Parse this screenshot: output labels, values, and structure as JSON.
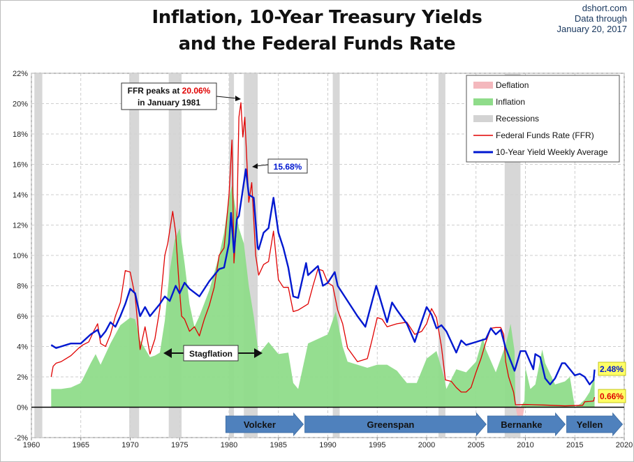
{
  "title_line1": "Inflation, 10-Year Treasury Yields",
  "title_line2": "and the Federal Funds Rate",
  "source": {
    "site": "dshort.com",
    "line2": "Data through",
    "line3": "January 20, 2017"
  },
  "chart_data": {
    "type": "line",
    "title": "Inflation, 10-Year Treasury Yields and the Federal Funds Rate",
    "xlim": [
      1960,
      2020
    ],
    "ylim": [
      -2,
      22
    ],
    "x_ticks": [
      1960,
      1965,
      1970,
      1975,
      1980,
      1985,
      1990,
      1995,
      2000,
      2005,
      2010,
      2015,
      2020
    ],
    "y_ticks": [
      "-2%",
      "0%",
      "2%",
      "4%",
      "6%",
      "8%",
      "10%",
      "12%",
      "14%",
      "16%",
      "18%",
      "20%",
      "22%"
    ],
    "grid": true,
    "legend_position": "top-right",
    "legend": [
      "Deflation",
      "Inflation",
      "Recessions",
      "Federal Funds Rate (FFR)",
      "10-Year Yield Weekly Average"
    ],
    "colors": {
      "deflation": "#f4b8bd",
      "inflation": "#8fdc8a",
      "recessions": "#d3d3d3",
      "ffr": "#e00000",
      "yield": "#0018d0",
      "era_arrow": "#4f81bd"
    },
    "recessions": [
      [
        1960.3,
        1961.1
      ],
      [
        1969.9,
        1970.9
      ],
      [
        1973.9,
        1975.2
      ],
      [
        1980.0,
        1980.5
      ],
      [
        1981.5,
        1982.9
      ],
      [
        1990.5,
        1991.2
      ],
      [
        2001.2,
        2001.9
      ],
      [
        2007.9,
        2009.5
      ]
    ],
    "series": [
      {
        "name": "Inflation",
        "x": [
          1962.0,
          1963.0,
          1964.0,
          1965.0,
          1966.0,
          1966.5,
          1967.0,
          1968.0,
          1969.0,
          1970.0,
          1970.5,
          1971.0,
          1972.0,
          1972.5,
          1973.0,
          1973.5,
          1974.0,
          1974.5,
          1975.0,
          1975.5,
          1976.0,
          1976.5,
          1977.0,
          1978.0,
          1979.0,
          1979.5,
          1980.0,
          1980.3,
          1980.7,
          1981.0,
          1981.5,
          1982.0,
          1982.5,
          1983.0,
          1984.0,
          1985.0,
          1986.0,
          1986.5,
          1987.0,
          1988.0,
          1989.0,
          1990.0,
          1990.8,
          1991.5,
          1992.0,
          1993.0,
          1994.0,
          1995.0,
          1996.0,
          1997.0,
          1998.0,
          1999.0,
          2000.0,
          2001.0,
          2001.8,
          2002.0,
          2003.0,
          2004.0,
          2005.0,
          2005.7,
          2006.0,
          2007.0,
          2008.0,
          2008.5,
          2008.9,
          2009.0,
          2009.5,
          2009.9,
          2010.0,
          2010.5,
          2011.0,
          2011.7,
          2012.0,
          2013.0,
          2014.0,
          2014.5,
          2015.0,
          2015.5,
          2016.0,
          2016.5,
          2017.0
        ],
        "values": [
          1.2,
          1.2,
          1.3,
          1.6,
          2.9,
          3.5,
          2.8,
          4.2,
          5.4,
          5.9,
          5.8,
          4.4,
          3.3,
          3.4,
          3.6,
          5.7,
          9.0,
          11.0,
          11.8,
          9.5,
          6.8,
          5.3,
          6.0,
          7.7,
          10.0,
          11.5,
          13.8,
          14.6,
          13.0,
          11.8,
          10.8,
          8.0,
          6.0,
          3.5,
          4.3,
          3.5,
          3.6,
          1.6,
          1.2,
          4.2,
          4.5,
          4.8,
          6.3,
          4.0,
          3.0,
          2.8,
          2.6,
          2.8,
          2.8,
          2.4,
          1.6,
          1.6,
          3.2,
          3.7,
          1.9,
          1.2,
          2.5,
          2.3,
          3.0,
          4.6,
          3.8,
          2.3,
          4.1,
          5.5,
          3.7,
          0.1,
          -1.5,
          0.4,
          2.6,
          1.2,
          1.5,
          3.8,
          2.9,
          1.5,
          1.7,
          2.0,
          0.0,
          0.2,
          0.5,
          1.0,
          2.1
        ]
      },
      {
        "name": "Federal Funds Rate (FFR)",
        "x": [
          1962.0,
          1962.2,
          1962.5,
          1963.0,
          1963.5,
          1964.0,
          1964.8,
          1965.2,
          1965.8,
          1966.3,
          1966.7,
          1967.0,
          1967.5,
          1968.0,
          1968.5,
          1969.0,
          1969.5,
          1970.0,
          1970.5,
          1971.0,
          1971.5,
          1972.0,
          1972.5,
          1973.0,
          1973.5,
          1973.8,
          1974.3,
          1974.6,
          1974.9,
          1975.2,
          1975.5,
          1976.0,
          1976.5,
          1977.0,
          1977.5,
          1978.0,
          1978.5,
          1979.0,
          1979.5,
          1980.0,
          1980.3,
          1980.5,
          1980.8,
          1981.0,
          1981.2,
          1981.4,
          1981.6,
          1982.0,
          1982.3,
          1982.7,
          1983.0,
          1983.5,
          1984.0,
          1984.5,
          1985.0,
          1985.5,
          1986.0,
          1986.5,
          1987.0,
          1987.5,
          1988.0,
          1988.5,
          1989.0,
          1989.5,
          1990.0,
          1990.5,
          1991.0,
          1991.5,
          1992.0,
          1993.0,
          1994.0,
          1994.5,
          1995.0,
          1995.5,
          1996.0,
          1997.0,
          1998.0,
          1998.8,
          1999.5,
          2000.0,
          2000.5,
          2001.0,
          2001.5,
          2001.9,
          2002.5,
          2003.0,
          2003.5,
          2004.0,
          2004.5,
          2005.0,
          2005.5,
          2006.0,
          2006.5,
          2007.0,
          2007.5,
          2007.8,
          2008.0,
          2008.3,
          2008.8,
          2009.0,
          2010.0,
          2012.0,
          2014.0,
          2015.8,
          2016.0,
          2016.5,
          2016.9,
          2017.0
        ],
        "values": [
          2.0,
          2.7,
          2.9,
          3.0,
          3.2,
          3.4,
          3.9,
          4.1,
          4.3,
          5.0,
          5.5,
          4.2,
          4.0,
          4.8,
          6.0,
          6.9,
          9.0,
          8.9,
          7.3,
          3.8,
          5.3,
          3.5,
          4.5,
          6.5,
          10.0,
          10.8,
          12.9,
          11.5,
          8.5,
          6.0,
          5.8,
          5.0,
          5.3,
          4.7,
          5.8,
          6.7,
          7.9,
          10.0,
          10.5,
          14.0,
          17.6,
          9.5,
          12.5,
          19.1,
          20.06,
          17.8,
          19.1,
          13.5,
          14.8,
          10.0,
          8.7,
          9.4,
          9.6,
          11.6,
          8.4,
          7.9,
          7.9,
          6.3,
          6.4,
          6.6,
          6.8,
          8.0,
          9.1,
          9.0,
          8.2,
          8.0,
          6.4,
          5.5,
          3.9,
          3.0,
          3.2,
          4.5,
          5.9,
          5.8,
          5.3,
          5.5,
          5.6,
          4.8,
          5.0,
          5.5,
          6.5,
          5.9,
          4.0,
          1.8,
          1.7,
          1.3,
          1.0,
          1.0,
          1.3,
          2.3,
          3.2,
          4.3,
          5.2,
          5.25,
          5.25,
          4.8,
          3.0,
          2.0,
          1.0,
          0.16,
          0.18,
          0.14,
          0.09,
          0.13,
          0.36,
          0.38,
          0.41,
          0.66
        ]
      },
      {
        "name": "10-Year Yield Weekly Average",
        "x": [
          1962.0,
          1962.5,
          1963.0,
          1963.5,
          1964.0,
          1965.0,
          1966.0,
          1966.7,
          1967.0,
          1967.5,
          1968.0,
          1968.5,
          1969.0,
          1969.5,
          1970.0,
          1970.5,
          1971.0,
          1971.5,
          1972.0,
          1973.0,
          1973.5,
          1974.0,
          1974.6,
          1975.0,
          1975.5,
          1976.0,
          1977.0,
          1978.0,
          1979.0,
          1979.5,
          1980.0,
          1980.2,
          1980.5,
          1980.8,
          1981.0,
          1981.3,
          1981.7,
          1982.0,
          1982.5,
          1982.9,
          1983.0,
          1983.5,
          1984.0,
          1984.5,
          1985.0,
          1985.5,
          1986.0,
          1986.5,
          1987.0,
          1987.8,
          1988.0,
          1989.0,
          1989.5,
          1990.0,
          1990.7,
          1991.0,
          1992.0,
          1993.0,
          1993.8,
          1994.0,
          1994.9,
          1995.0,
          1996.0,
          1996.5,
          1997.0,
          1998.0,
          1998.8,
          1999.0,
          2000.0,
          2000.5,
          2001.0,
          2001.5,
          2002.0,
          2003.0,
          2003.5,
          2004.0,
          2005.0,
          2006.0,
          2006.5,
          2007.0,
          2007.5,
          2008.0,
          2008.9,
          2009.0,
          2009.5,
          2010.0,
          2010.8,
          2011.0,
          2011.5,
          2012.0,
          2012.5,
          2013.0,
          2013.7,
          2014.0,
          2015.0,
          2015.5,
          2016.0,
          2016.5,
          2016.9,
          2017.0
        ],
        "values": [
          4.1,
          3.9,
          4.0,
          4.1,
          4.2,
          4.2,
          4.8,
          5.1,
          4.6,
          5.0,
          5.6,
          5.3,
          6.0,
          6.8,
          7.8,
          7.5,
          6.0,
          6.6,
          6.0,
          6.8,
          7.3,
          7.0,
          8.0,
          7.5,
          8.2,
          7.8,
          7.3,
          8.3,
          9.1,
          9.2,
          10.8,
          12.8,
          10.2,
          12.4,
          12.6,
          13.9,
          15.68,
          14.0,
          13.8,
          10.5,
          10.4,
          11.5,
          11.8,
          13.8,
          11.5,
          10.5,
          9.2,
          7.3,
          7.2,
          9.5,
          8.7,
          9.3,
          8.0,
          8.2,
          8.9,
          8.0,
          7.0,
          6.0,
          5.3,
          5.8,
          8.0,
          7.8,
          5.6,
          6.9,
          6.4,
          5.5,
          4.3,
          4.7,
          6.6,
          6.1,
          5.2,
          5.4,
          5.0,
          3.6,
          4.4,
          4.1,
          4.3,
          4.5,
          5.2,
          4.8,
          5.1,
          3.9,
          2.4,
          2.6,
          3.7,
          3.7,
          2.5,
          3.5,
          3.3,
          1.9,
          1.5,
          1.9,
          2.9,
          2.9,
          2.1,
          2.2,
          2.0,
          1.5,
          1.8,
          2.48
        ]
      }
    ],
    "labels": {
      "ffr_peak_prefix": "FFR peaks at ",
      "ffr_peak_value": "20.06%",
      "ffr_peak_line2": "in January 1981",
      "yield_peak": "15.68%",
      "stagflation": "Stagflation",
      "yield_end": "2.48%",
      "ffr_end": "0.66%"
    },
    "eras": [
      {
        "name": "Volcker",
        "start": 1979.6,
        "end": 1987.6
      },
      {
        "name": "Greenspan",
        "start": 1987.6,
        "end": 2006.1
      },
      {
        "name": "Bernanke",
        "start": 2006.1,
        "end": 2014.1
      },
      {
        "name": "Yellen",
        "start": 2014.1,
        "end": 2019.9
      }
    ]
  }
}
